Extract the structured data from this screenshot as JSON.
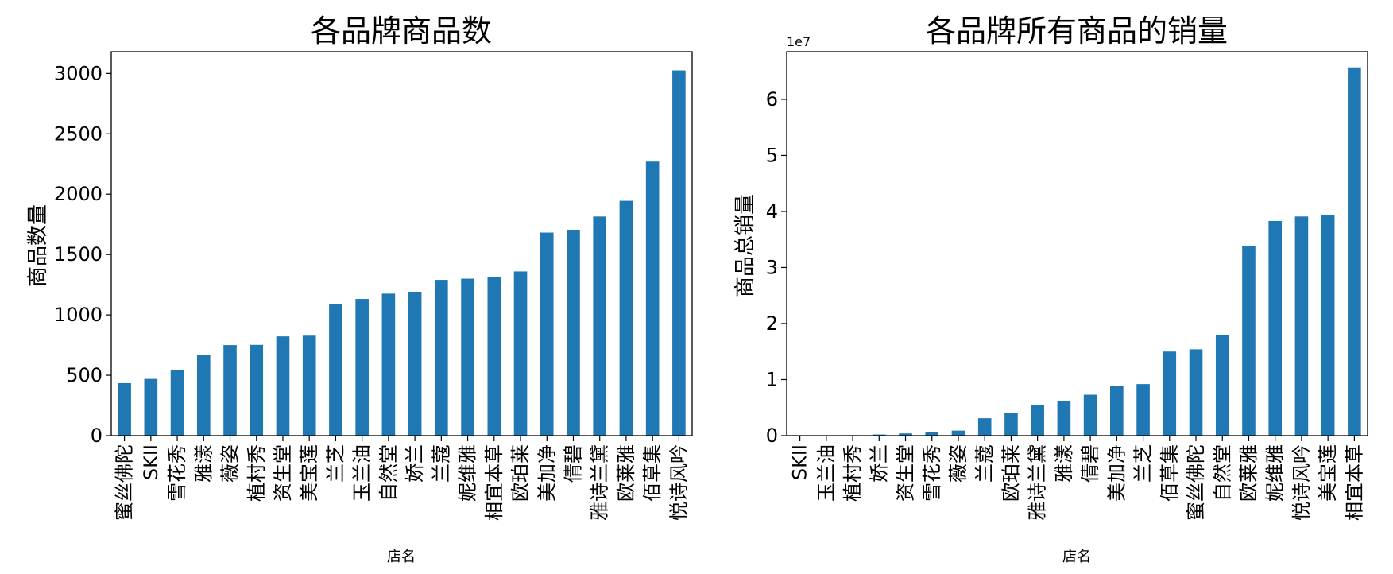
{
  "figure": {
    "background": "#ffffff",
    "bar_color": "#1f77b4"
  },
  "chart_data": [
    {
      "type": "bar",
      "title": "各品牌商品数",
      "xlabel": "店名",
      "ylabel": "商品数量",
      "ylim": [
        0,
        3180
      ],
      "yticks": [
        0,
        500,
        1000,
        1500,
        2000,
        2500,
        3000
      ],
      "ytick_labels": [
        "0",
        "500",
        "1000",
        "1500",
        "2000",
        "2500",
        "3000"
      ],
      "offset_label": "",
      "categories": [
        "蜜丝佛陀",
        "SKII",
        "雪花秀",
        "雅漾",
        "薇姿",
        "植村秀",
        "资生堂",
        "美宝莲",
        "兰芝",
        "玉兰油",
        "自然堂",
        "娇兰",
        "兰蔻",
        "妮维雅",
        "相宜本草",
        "欧珀莱",
        "美加净",
        "倩碧",
        "雅诗兰黛",
        "欧莱雅",
        "佰草集",
        "悦诗风吟"
      ],
      "values": [
        435,
        470,
        545,
        665,
        750,
        752,
        822,
        828,
        1090,
        1132,
        1176,
        1192,
        1290,
        1300,
        1315,
        1360,
        1682,
        1705,
        1815,
        1945,
        2270,
        3025
      ],
      "grid": false,
      "legend": "none"
    },
    {
      "type": "bar",
      "title": "各品牌所有商品的销量",
      "xlabel": "店名",
      "ylabel": "商品总销量",
      "ylim": [
        0,
        68500000
      ],
      "yticks": [
        0,
        10000000,
        20000000,
        30000000,
        40000000,
        50000000,
        60000000
      ],
      "ytick_labels": [
        "0",
        "1",
        "2",
        "3",
        "4",
        "5",
        "6"
      ],
      "offset_label": "1e7",
      "categories": [
        "SKII",
        "玉兰油",
        "植村秀",
        "娇兰",
        "资生堂",
        "雪花秀",
        "薇姿",
        "兰蔻",
        "欧珀莱",
        "雅诗兰黛",
        "雅漾",
        "倩碧",
        "美加净",
        "兰芝",
        "佰草集",
        "蜜丝佛陀",
        "自然堂",
        "欧莱雅",
        "妮维雅",
        "悦诗风吟",
        "美宝莲",
        "相宜本草"
      ],
      "values": [
        20000,
        50000,
        80000,
        200000,
        400000,
        700000,
        900000,
        3100000,
        4000000,
        5400000,
        6100000,
        7300000,
        8800000,
        9200000,
        15000000,
        15400000,
        17900000,
        33900000,
        38300000,
        39100000,
        39400000,
        65700000
      ],
      "grid": false,
      "legend": "none"
    }
  ]
}
